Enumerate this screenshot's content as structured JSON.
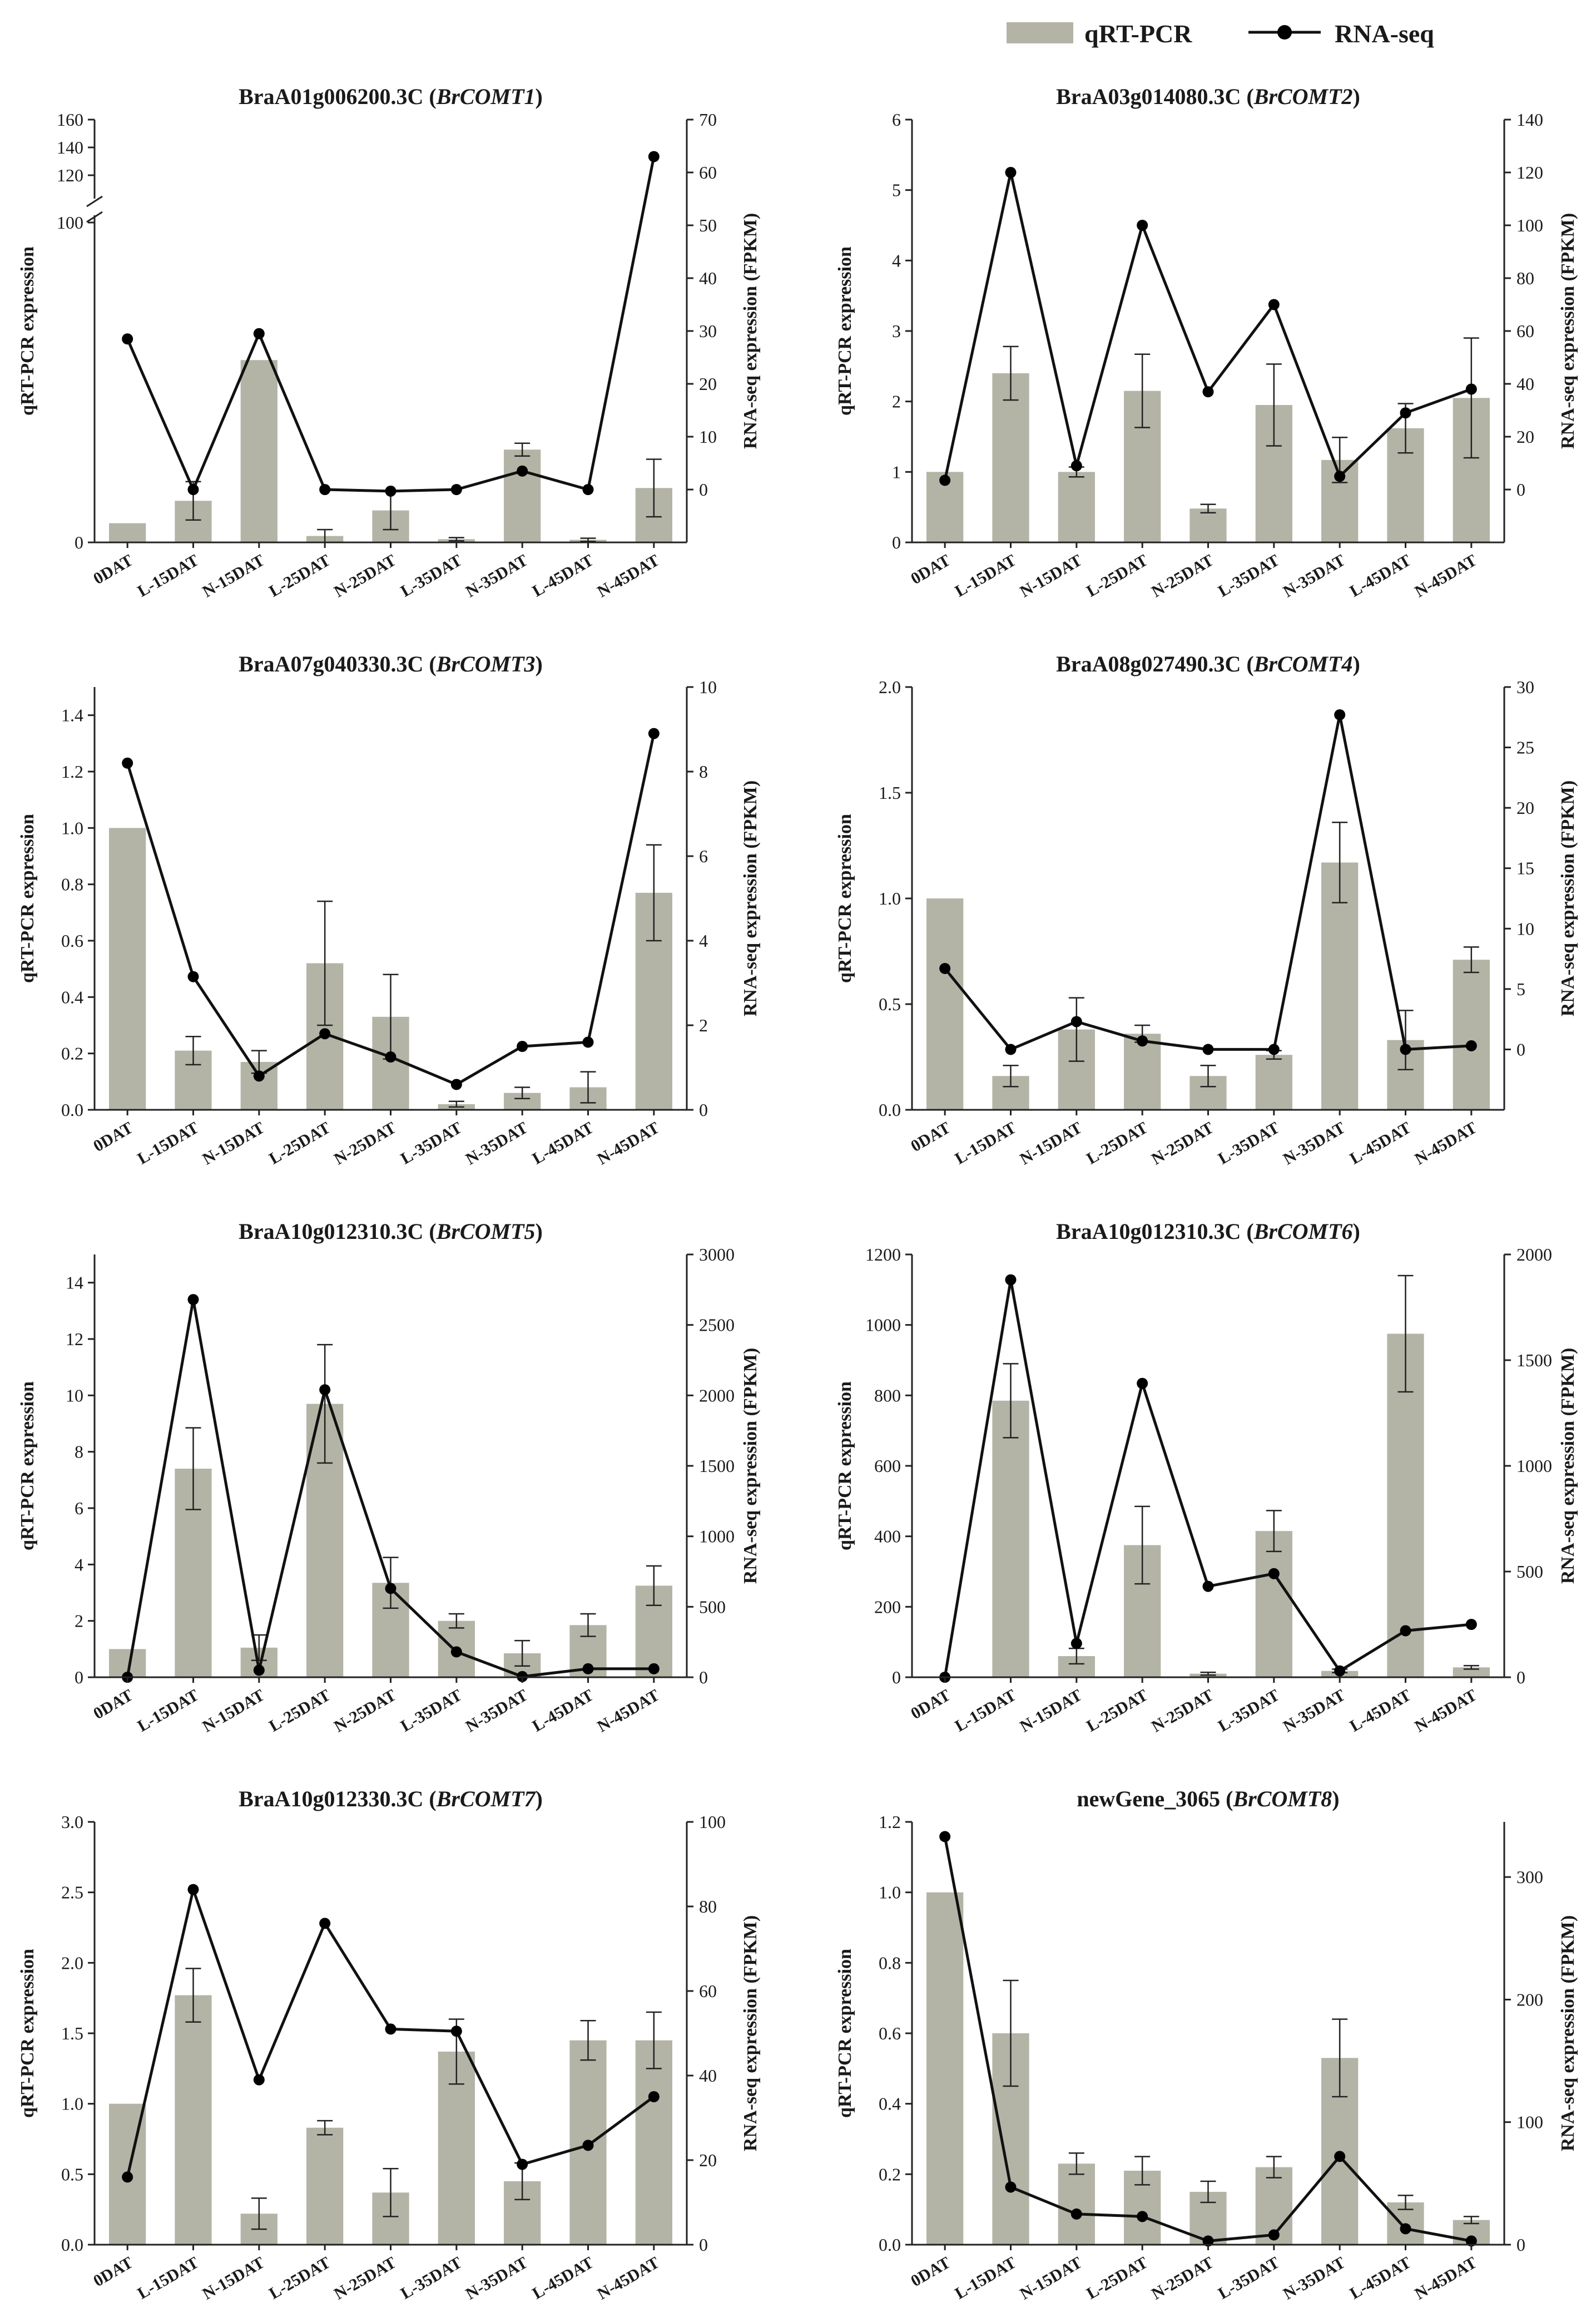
{
  "legend": {
    "bar_label": "qRT-PCR",
    "line_label": "RNA-seq"
  },
  "colors": {
    "bar": "#b3b4a5",
    "line": "#111111"
  },
  "chart_data": [
    {
      "type": "bar+line",
      "title_main": "BraA01g006200.3C (",
      "title_gene": "BrCOMT1",
      "title_end": ")",
      "ylabel": "qRT-PCR expression",
      "y2label": "RNA-seq expression (FPKM)",
      "categories": [
        "0DAT",
        "L-15DAT",
        "N-15DAT",
        "L-25DAT",
        "N-25DAT",
        "L-35DAT",
        "N-35DAT",
        "L-45DAT",
        "N-45DAT"
      ],
      "y_broken": true,
      "y_lower_max": 100,
      "y_upper_range": [
        100,
        160
      ],
      "y_ticks": [
        0,
        100,
        120,
        140,
        160
      ],
      "y2lim": [
        -10,
        70
      ],
      "y2_ticks": [
        0,
        10,
        20,
        30,
        40,
        50,
        60,
        70
      ],
      "bars": [
        6,
        13,
        57,
        2,
        10,
        1,
        29,
        0.8,
        17
      ],
      "bar_err": [
        0,
        6,
        0,
        2,
        6,
        0.5,
        2,
        0.5,
        9
      ],
      "rnaseq": [
        28.5,
        0,
        29.5,
        0,
        -0.3,
        0,
        3.5,
        0,
        63
      ]
    },
    {
      "type": "bar+line",
      "title_main": "BraA03g014080.3C (",
      "title_gene": "BrCOMT2",
      "title_end": ")",
      "ylabel": "qRT-PCR expression",
      "y2label": "RNA-seq expression (FPKM)",
      "categories": [
        "0DAT",
        "L-15DAT",
        "N-15DAT",
        "L-25DAT",
        "N-25DAT",
        "L-35DAT",
        "N-35DAT",
        "L-45DAT",
        "N-45DAT"
      ],
      "ylim": [
        0,
        6
      ],
      "y_ticks": [
        0,
        1,
        2,
        3,
        4,
        5,
        6
      ],
      "y2lim": [
        -20,
        140
      ],
      "y2_ticks": [
        0,
        20,
        40,
        60,
        80,
        100,
        120,
        140
      ],
      "bars": [
        1.0,
        2.4,
        1.0,
        2.15,
        0.48,
        1.95,
        1.17,
        1.62,
        2.05
      ],
      "bar_err": [
        0,
        0.38,
        0.07,
        0.52,
        0.06,
        0.58,
        0.32,
        0.35,
        0.85
      ],
      "rnaseq": [
        3.5,
        120,
        9,
        100,
        37,
        70,
        5,
        29,
        38
      ]
    },
    {
      "type": "bar+line",
      "title_main": "BraA07g040330.3C (",
      "title_gene": "BrCOMT3",
      "title_end": ")",
      "ylabel": "qRT-PCR expression",
      "y2label": "RNA-seq expression (FPKM)",
      "categories": [
        "0DAT",
        "L-15DAT",
        "N-15DAT",
        "L-25DAT",
        "N-25DAT",
        "L-35DAT",
        "N-35DAT",
        "L-45DAT",
        "N-45DAT"
      ],
      "ylim": [
        0,
        1.5
      ],
      "y_ticks": [
        0.0,
        0.2,
        0.4,
        0.6,
        0.8,
        1.0,
        1.2,
        1.4
      ],
      "y2lim": [
        0,
        10
      ],
      "y2_ticks": [
        0,
        2,
        4,
        6,
        8,
        10
      ],
      "bars": [
        1.0,
        0.21,
        0.17,
        0.52,
        0.33,
        0.02,
        0.06,
        0.08,
        0.77
      ],
      "bar_err": [
        0,
        0.05,
        0.04,
        0.22,
        0.15,
        0.01,
        0.02,
        0.055,
        0.17
      ],
      "rnaseq": [
        8.2,
        3.15,
        0.8,
        1.8,
        1.25,
        0.6,
        1.5,
        1.6,
        8.9
      ]
    },
    {
      "type": "bar+line",
      "title_main": "BraA08g027490.3C (",
      "title_gene": "BrCOMT4",
      "title_end": ")",
      "ylabel": "qRT-PCR expression",
      "y2label": "RNA-seq expression (FPKM)",
      "categories": [
        "0DAT",
        "L-15DAT",
        "N-15DAT",
        "L-25DAT",
        "N-25DAT",
        "L-35DAT",
        "N-35DAT",
        "L-45DAT",
        "N-45DAT"
      ],
      "ylim": [
        0,
        2.0
      ],
      "y_ticks": [
        0.0,
        0.5,
        1.0,
        1.5,
        2.0
      ],
      "y2lim": [
        -5,
        30
      ],
      "y2_ticks": [
        0,
        5,
        10,
        15,
        20,
        25,
        30
      ],
      "bars": [
        1.0,
        0.16,
        0.38,
        0.36,
        0.16,
        0.26,
        1.17,
        0.33,
        0.71
      ],
      "bar_err": [
        0,
        0.05,
        0.15,
        0.04,
        0.05,
        0.02,
        0.19,
        0.14,
        0.06
      ],
      "rnaseq": [
        6.7,
        0,
        2.3,
        0.7,
        0,
        0,
        27.7,
        0,
        0.3
      ]
    },
    {
      "type": "bar+line",
      "title_main": "BraA10g012310.3C (",
      "title_gene": "BrCOMT5",
      "title_end": ")",
      "ylabel": "qRT-PCR expression",
      "y2label": "RNA-seq expression (FPKM)",
      "categories": [
        "0DAT",
        "L-15DAT",
        "N-15DAT",
        "L-25DAT",
        "N-25DAT",
        "L-35DAT",
        "N-35DAT",
        "L-45DAT",
        "N-45DAT"
      ],
      "ylim": [
        0,
        15
      ],
      "y_ticks": [
        0,
        2,
        4,
        6,
        8,
        10,
        12,
        14
      ],
      "y2lim": [
        0,
        3000
      ],
      "y2_ticks": [
        0,
        500,
        1000,
        1500,
        2000,
        2500,
        3000
      ],
      "bars": [
        1.0,
        7.4,
        1.05,
        9.7,
        3.35,
        2.0,
        0.85,
        1.85,
        3.25
      ],
      "bar_err": [
        0,
        1.45,
        0.45,
        2.1,
        0.9,
        0.25,
        0.45,
        0.4,
        0.7
      ],
      "rnaseq": [
        0,
        2680,
        50,
        2040,
        630,
        180,
        5,
        60,
        60
      ]
    },
    {
      "type": "bar+line",
      "title_main": "BraA10g012310.3C (",
      "title_gene": "BrCOMT6",
      "title_end": ")",
      "ylabel": "qRT-PCR expression",
      "y2label": "RNA-seq expression (FPKM)",
      "categories": [
        "0DAT",
        "L-15DAT",
        "N-15DAT",
        "L-25DAT",
        "N-25DAT",
        "L-35DAT",
        "N-35DAT",
        "L-45DAT",
        "N-45DAT"
      ],
      "ylim": [
        0,
        1200
      ],
      "y_ticks": [
        0,
        200,
        400,
        600,
        800,
        1000,
        1200
      ],
      "y2lim": [
        0,
        2000
      ],
      "y2_ticks": [
        0,
        500,
        1000,
        1500,
        2000
      ],
      "bars": [
        1,
        785,
        60,
        375,
        10,
        415,
        18,
        975,
        28
      ],
      "bar_err": [
        0,
        105,
        22,
        110,
        4,
        58,
        5,
        165,
        5
      ],
      "rnaseq": [
        0,
        1880,
        160,
        1390,
        430,
        490,
        30,
        220,
        250
      ]
    },
    {
      "type": "bar+line",
      "title_main": "BraA10g012330.3C (",
      "title_gene": "BrCOMT7",
      "title_end": ")",
      "ylabel": "qRT-PCR expression",
      "y2label": "RNA-seq expression (FPKM)",
      "categories": [
        "0DAT",
        "L-15DAT",
        "N-15DAT",
        "L-25DAT",
        "N-25DAT",
        "L-35DAT",
        "N-35DAT",
        "L-45DAT",
        "N-45DAT"
      ],
      "ylim": [
        0,
        3.0
      ],
      "y_ticks": [
        0.0,
        0.5,
        1.0,
        1.5,
        2.0,
        2.5,
        3.0
      ],
      "y2lim": [
        0,
        100
      ],
      "y2_ticks": [
        0,
        20,
        40,
        60,
        80,
        100
      ],
      "bars": [
        1.0,
        1.77,
        0.22,
        0.83,
        0.37,
        1.37,
        0.45,
        1.45,
        1.45
      ],
      "bar_err": [
        0,
        0.19,
        0.11,
        0.05,
        0.17,
        0.23,
        0.13,
        0.14,
        0.2
      ],
      "rnaseq": [
        16,
        84,
        39,
        76,
        51,
        50.5,
        19,
        23.5,
        35
      ]
    },
    {
      "type": "bar+line",
      "title_main": "newGene_3065 (",
      "title_gene": "BrCOMT8",
      "title_end": ")",
      "ylabel": "qRT-PCR expression",
      "y2label": "RNA-seq expression (FPKM)",
      "categories": [
        "0DAT",
        "L-15DAT",
        "N-15DAT",
        "L-25DAT",
        "N-25DAT",
        "L-35DAT",
        "N-35DAT",
        "L-45DAT",
        "N-45DAT"
      ],
      "ylim": [
        0,
        1.2
      ],
      "y_ticks": [
        0.0,
        0.2,
        0.4,
        0.6,
        0.8,
        1.0,
        1.2
      ],
      "y2lim": [
        0,
        345
      ],
      "y2_ticks": [
        0,
        100,
        200,
        300
      ],
      "bars": [
        1.0,
        0.6,
        0.23,
        0.21,
        0.15,
        0.22,
        0.53,
        0.12,
        0.07
      ],
      "bar_err": [
        0,
        0.15,
        0.03,
        0.04,
        0.03,
        0.03,
        0.11,
        0.02,
        0.01
      ],
      "rnaseq": [
        333,
        47,
        25,
        23,
        3,
        8,
        72,
        13,
        3
      ]
    }
  ]
}
